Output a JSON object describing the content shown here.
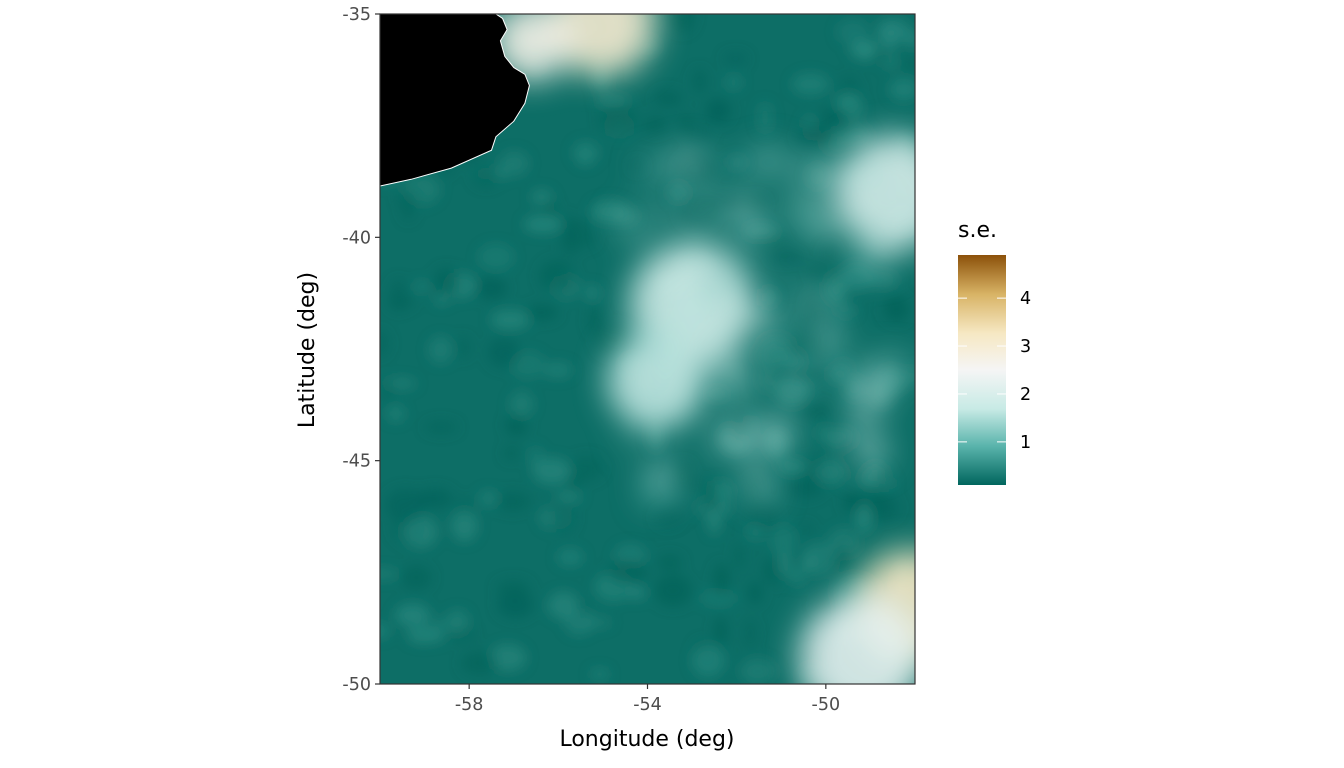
{
  "chart_data": {
    "type": "heatmap",
    "xlabel": "Longitude (deg)",
    "ylabel": "Latitude (deg)",
    "xlim": [
      -60,
      -48
    ],
    "ylim": [
      -50,
      -35
    ],
    "x_ticks": [
      -58,
      -54,
      -50
    ],
    "y_ticks": [
      -50,
      -45,
      -40,
      -35
    ],
    "x_tick_labels": [
      "-58",
      "-54",
      "-50"
    ],
    "y_tick_labels": [
      "-50",
      "-45",
      "-40",
      "-35"
    ],
    "legend": {
      "title": "s.e.",
      "position": "right",
      "range": [
        0.1,
        4.9
      ],
      "ticks": [
        1,
        2,
        3,
        4
      ],
      "tick_labels": [
        "1",
        "2",
        "3",
        "4"
      ],
      "colors": [
        "#01665e",
        "#5ab4ac",
        "#c7eae5",
        "#f5f5f5",
        "#f6e8c3",
        "#d8b365",
        "#8c510a"
      ]
    },
    "land_color": "#000000",
    "land_outline": [
      [
        -60,
        -38.85
      ],
      [
        -59.3,
        -38.7
      ],
      [
        -58.4,
        -38.45
      ],
      [
        -57.5,
        -38.05
      ],
      [
        -57.4,
        -37.75
      ],
      [
        -57.0,
        -37.4
      ],
      [
        -56.75,
        -37.0
      ],
      [
        -56.65,
        -36.6
      ],
      [
        -56.75,
        -36.35
      ],
      [
        -57.0,
        -36.2
      ],
      [
        -57.2,
        -35.95
      ],
      [
        -57.3,
        -35.6
      ],
      [
        -57.15,
        -35.35
      ],
      [
        -57.25,
        -35.1
      ],
      [
        -57.4,
        -35.0
      ],
      [
        -60,
        -35
      ]
    ],
    "high_error_regions": [
      {
        "lon": -55.0,
        "lat": -35.2,
        "se": 3.1,
        "radius": 1.2
      },
      {
        "lon": -56.6,
        "lat": -35.6,
        "se": 2.7,
        "radius": 0.9
      },
      {
        "lon": -48.1,
        "lat": -48.3,
        "se": 3.3,
        "radius": 1.3
      },
      {
        "lon": -49.2,
        "lat": -49.4,
        "se": 2.2,
        "radius": 1.4
      },
      {
        "lon": -48.5,
        "lat": -39.0,
        "se": 2.0,
        "radius": 1.3
      },
      {
        "lon": -53.0,
        "lat": -41.5,
        "se": 1.9,
        "radius": 1.4
      },
      {
        "lon": -53.8,
        "lat": -43.2,
        "se": 1.7,
        "radius": 1.1
      }
    ]
  }
}
